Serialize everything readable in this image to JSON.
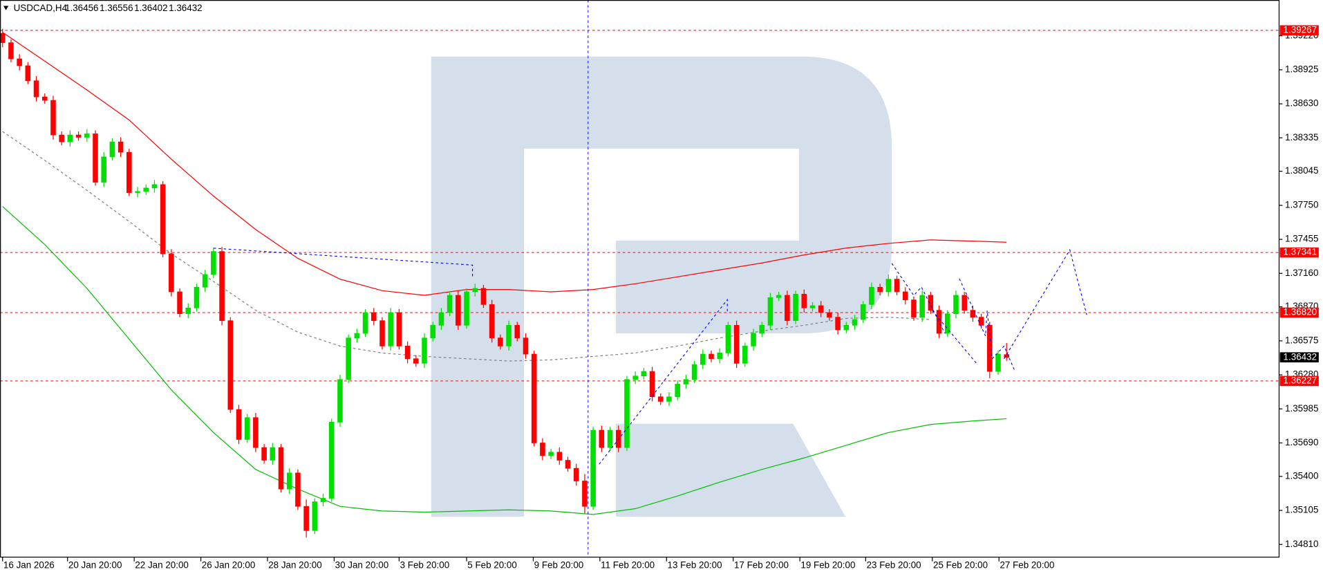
{
  "chart_data": {
    "type": "candlestick",
    "symbol": "USDCAD,H4",
    "xlim": [
      -0.3,
      151.3
    ],
    "ylim": [
      1.347,
      1.3953
    ],
    "up_color": "#00e000",
    "down_color": "#ff0000",
    "xticks": [
      {
        "value": 0,
        "label": "16 Jan 2026"
      },
      {
        "value": 7.7,
        "label": "20 Jan 20:00"
      },
      {
        "value": 15.6,
        "label": "22 Jan 20:00"
      },
      {
        "value": 23.5,
        "label": "26 Jan 20:00"
      },
      {
        "value": 31.4,
        "label": "28 Jan 20:00"
      },
      {
        "value": 39.3,
        "label": "30 Jan 20:00"
      },
      {
        "value": 47,
        "label": "3 Feb 20:00"
      },
      {
        "value": 55,
        "label": "5 Feb 20:00"
      },
      {
        "value": 62.9,
        "label": "9 Feb 20:00"
      },
      {
        "value": 70.8,
        "label": "11 Feb 20:00"
      },
      {
        "value": 78.7,
        "label": "13 Feb 20:00"
      },
      {
        "value": 86.6,
        "label": "17 Feb 20:00"
      },
      {
        "value": 94.5,
        "label": "19 Feb 20:00"
      },
      {
        "value": 102.3,
        "label": "23 Feb 20:00"
      },
      {
        "value": 110.2,
        "label": "25 Feb 20:00"
      },
      {
        "value": 118.1,
        "label": "27 Feb 20:00"
      }
    ],
    "yticks": [
      {
        "value": 1.3922,
        "label": "1.39220"
      },
      1.38925,
      {
        "value": 1.3863,
        "label": "1.38630"
      },
      1.38335,
      1.38045,
      {
        "value": 1.3775,
        "label": "1.37750"
      },
      1.37455,
      {
        "value": 1.3716,
        "label": "1.37160"
      },
      {
        "value": 1.3687,
        "label": "1.36870"
      },
      1.36575,
      {
        "value": 1.3628,
        "label": "1.36280"
      },
      1.35985,
      {
        "value": 1.3569,
        "label": "1.35690"
      },
      {
        "value": 1.354,
        "label": "1.35400"
      },
      1.35105,
      {
        "value": 1.3481,
        "label": "1.34810"
      }
    ],
    "levels": [
      1.39267,
      1.37341,
      {
        "value": 1.3682,
        "label": "1.36820"
      },
      1.36227
    ],
    "level_color": "#ff0000",
    "open": [
      1.3924,
      1.3916,
      1.3902,
      1.3896,
      1.3883,
      1.3869,
      1.3866,
      1.3836,
      1.383,
      1.3836,
      1.3834,
      1.3837,
      1.3795,
      1.3817,
      1.383,
      1.3821,
      1.3786,
      1.3787,
      1.379,
      1.3793,
      1.3733,
      1.37,
      1.3681,
      1.3686,
      1.3704,
      1.3715,
      1.3735,
      1.3675,
      1.3598,
      1.3572,
      1.3591,
      1.3565,
      1.3554,
      1.3565,
      1.3529,
      1.3543,
      1.3514,
      1.3493,
      1.3518,
      1.3521,
      1.3587,
      1.3624,
      1.366,
      1.3664,
      1.3682,
      1.3675,
      1.3653,
      1.3682,
      1.3653,
      1.3642,
      1.3638,
      1.366,
      1.3671,
      1.3682,
      1.3697,
      1.3671,
      1.37,
      1.3703,
      1.3689,
      1.366,
      1.3653,
      1.3671,
      1.366,
      1.3646,
      1.3569,
      1.3558,
      1.3561,
      1.3554,
      1.3547,
      1.3536,
      1.3514,
      1.358,
      1.3565,
      1.358,
      1.3565,
      1.3624,
      1.3627,
      1.3631,
      1.3609,
      1.3605,
      1.3609,
      1.362,
      1.3624,
      1.3637,
      1.3646,
      1.3642,
      1.3647,
      1.3671,
      1.3638,
      1.3653,
      1.3664,
      1.3671,
      1.3695,
      1.3697,
      1.3675,
      1.3698,
      1.3686,
      1.3688,
      1.3682,
      1.3678,
      1.3667,
      1.3671,
      1.3676,
      1.3689,
      1.3704,
      1.37,
      1.3711,
      1.37,
      1.3693,
      1.3678,
      1.3697,
      1.3684,
      1.3664,
      1.3681,
      1.3697,
      1.3684,
      1.3678,
      1.3671,
      1.3631,
      1.36456
    ],
    "high": [
      1.3928,
      1.3919,
      1.3906,
      1.3899,
      1.3887,
      1.3872,
      1.387,
      1.3839,
      1.384,
      1.3839,
      1.3841,
      1.384,
      1.3821,
      1.3833,
      1.3834,
      1.3824,
      1.3791,
      1.3793,
      1.3797,
      1.3796,
      1.3737,
      1.3703,
      1.369,
      1.3707,
      1.3719,
      1.3738,
      1.3739,
      1.3678,
      1.3602,
      1.3594,
      1.3595,
      1.3568,
      1.3569,
      1.3568,
      1.3547,
      1.3546,
      1.352,
      1.3521,
      1.3525,
      1.359,
      1.3628,
      1.3663,
      1.3668,
      1.3685,
      1.3686,
      1.3678,
      1.3686,
      1.3685,
      1.3657,
      1.3645,
      1.3664,
      1.3674,
      1.3686,
      1.37,
      1.3701,
      1.3703,
      1.3707,
      1.3706,
      1.3693,
      1.3663,
      1.3675,
      1.3674,
      1.3664,
      1.3649,
      1.3573,
      1.3564,
      1.3565,
      1.3557,
      1.3551,
      1.3542,
      1.3583,
      1.3584,
      1.3583,
      1.3584,
      1.3627,
      1.3631,
      1.3634,
      1.3635,
      1.3612,
      1.3613,
      1.3623,
      1.3628,
      1.364,
      1.365,
      1.3649,
      1.3651,
      1.3674,
      1.3675,
      1.3656,
      1.3668,
      1.3674,
      1.3699,
      1.37,
      1.3701,
      1.3701,
      1.3702,
      1.3691,
      1.3692,
      1.3685,
      1.3682,
      1.3674,
      1.368,
      1.3692,
      1.3708,
      1.3707,
      1.3715,
      1.3714,
      1.3704,
      1.3696,
      1.3701,
      1.37,
      1.3688,
      1.3684,
      1.3701,
      1.37,
      1.3688,
      1.3681,
      1.3674,
      1.3649,
      1.36556
    ],
    "low": [
      1.3912,
      1.3899,
      1.3892,
      1.388,
      1.3865,
      1.3863,
      1.3832,
      1.3827,
      1.3826,
      1.3831,
      1.383,
      1.3792,
      1.3791,
      1.3814,
      1.3817,
      1.3783,
      1.3782,
      1.3784,
      1.3786,
      1.373,
      1.3696,
      1.3678,
      1.3677,
      1.3683,
      1.37,
      1.3712,
      1.3671,
      1.3595,
      1.3568,
      1.3569,
      1.3561,
      1.3551,
      1.355,
      1.3526,
      1.3525,
      1.3511,
      1.3487,
      1.349,
      1.3514,
      1.3518,
      1.3583,
      1.3621,
      1.3656,
      1.3661,
      1.3671,
      1.365,
      1.3649,
      1.365,
      1.3638,
      1.3635,
      1.3634,
      1.3657,
      1.3667,
      1.3679,
      1.3667,
      1.3668,
      1.3696,
      1.3686,
      1.3656,
      1.365,
      1.3649,
      1.3657,
      1.3642,
      1.3566,
      1.3554,
      1.3555,
      1.355,
      1.3544,
      1.3532,
      1.3508,
      1.3511,
      1.3561,
      1.3562,
      1.3561,
      1.3562,
      1.362,
      1.3624,
      1.3605,
      1.3602,
      1.3601,
      1.3606,
      1.3616,
      1.3621,
      1.3633,
      1.3639,
      1.3638,
      1.3644,
      1.3634,
      1.3635,
      1.3649,
      1.3661,
      1.3667,
      1.3692,
      1.3671,
      1.3672,
      1.3682,
      1.3683,
      1.3678,
      1.3675,
      1.3663,
      1.3664,
      1.3667,
      1.3673,
      1.3685,
      1.3697,
      1.3696,
      1.3697,
      1.3689,
      1.3675,
      1.3674,
      1.3681,
      1.366,
      1.3661,
      1.3677,
      1.3681,
      1.3674,
      1.3668,
      1.3625,
      1.3628,
      1.36402
    ],
    "close": [
      1.3916,
      1.3902,
      1.3896,
      1.3883,
      1.3869,
      1.3866,
      1.3836,
      1.383,
      1.3836,
      1.3834,
      1.3837,
      1.3795,
      1.3817,
      1.383,
      1.3821,
      1.3786,
      1.3787,
      1.379,
      1.3793,
      1.3733,
      1.37,
      1.3681,
      1.3686,
      1.3704,
      1.3715,
      1.3735,
      1.3675,
      1.3598,
      1.3572,
      1.3591,
      1.3565,
      1.3554,
      1.3565,
      1.3529,
      1.3543,
      1.3514,
      1.3493,
      1.3518,
      1.3521,
      1.3587,
      1.3624,
      1.366,
      1.3664,
      1.3682,
      1.3675,
      1.3653,
      1.3682,
      1.3653,
      1.3642,
      1.3638,
      1.366,
      1.3671,
      1.3682,
      1.3697,
      1.3671,
      1.37,
      1.3703,
      1.3689,
      1.366,
      1.3653,
      1.3671,
      1.366,
      1.3646,
      1.3569,
      1.3558,
      1.3561,
      1.3554,
      1.3547,
      1.3536,
      1.3514,
      1.358,
      1.3565,
      1.358,
      1.3565,
      1.3624,
      1.3627,
      1.3631,
      1.3609,
      1.3605,
      1.3609,
      1.362,
      1.3624,
      1.3637,
      1.3646,
      1.3642,
      1.3647,
      1.3671,
      1.3638,
      1.3653,
      1.3664,
      1.3671,
      1.3695,
      1.3697,
      1.3675,
      1.3698,
      1.3686,
      1.3688,
      1.3682,
      1.3678,
      1.3667,
      1.3671,
      1.3676,
      1.3689,
      1.3704,
      1.37,
      1.3711,
      1.37,
      1.3693,
      1.3678,
      1.3697,
      1.3684,
      1.3664,
      1.3681,
      1.3697,
      1.3684,
      1.3678,
      1.3671,
      1.3631,
      1.3646,
      1.36432
    ],
    "lines": [
      {
        "color": "#ff0000",
        "dashed": false,
        "x": [
          0,
          5,
          10,
          15,
          20,
          25,
          30,
          35,
          40,
          45,
          50,
          55,
          60,
          65,
          70,
          75,
          80,
          85,
          90,
          95,
          100,
          105,
          110,
          115,
          119
        ],
        "values": [
          1.3925,
          1.39,
          1.3875,
          1.3849,
          1.3815,
          1.3783,
          1.3754,
          1.3729,
          1.3711,
          1.3701,
          1.3697,
          1.3702,
          1.3702,
          1.37,
          1.3702,
          1.3707,
          1.3713,
          1.3719,
          1.3725,
          1.3732,
          1.3738,
          1.3742,
          1.3745,
          1.3744,
          1.3743
        ]
      },
      {
        "color": "#00c000",
        "dashed": false,
        "x": [
          0,
          5,
          10,
          15,
          20,
          25,
          30,
          35,
          40,
          45,
          50,
          55,
          60,
          65,
          70,
          75,
          80,
          85,
          90,
          95,
          100,
          105,
          110,
          115,
          119
        ],
        "values": [
          1.3774,
          1.3741,
          1.3703,
          1.3659,
          1.3615,
          1.3578,
          1.3546,
          1.3529,
          1.3514,
          1.351,
          1.3509,
          1.351,
          1.3511,
          1.351,
          1.3507,
          1.3512,
          1.3523,
          1.3535,
          1.3546,
          1.3556,
          1.3567,
          1.3578,
          1.3585,
          1.3588,
          1.359
        ]
      },
      {
        "color": "#808080",
        "dashed": true,
        "x": [
          0,
          5,
          10,
          15,
          20,
          25,
          30,
          35,
          40,
          45,
          50,
          55,
          60,
          65,
          70,
          75,
          80,
          85,
          90,
          95,
          100,
          105,
          110
        ],
        "values": [
          1.3839,
          1.3814,
          1.3788,
          1.3761,
          1.3733,
          1.3709,
          1.3684,
          1.3665,
          1.3653,
          1.3647,
          1.3644,
          1.3642,
          1.364,
          1.3641,
          1.3644,
          1.3647,
          1.3653,
          1.366,
          1.3666,
          1.3671,
          1.3677,
          1.3678,
          1.3676
        ]
      }
    ]
  }
}
